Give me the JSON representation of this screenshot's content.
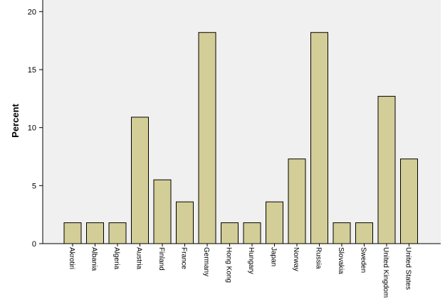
{
  "chart_data": {
    "type": "bar",
    "y_label": "Percent",
    "categories": [
      "Akrotiri",
      "Albania",
      "Algeria",
      "Austria",
      "Finland",
      "France",
      "Germany",
      "Hong Kong",
      "Hungary",
      "Japan",
      "Norway",
      "Russia",
      "Slovakia",
      "Sweden",
      "United Kingdom",
      "United States"
    ],
    "values": [
      1.8,
      1.8,
      1.8,
      10.9,
      5.5,
      3.6,
      18.2,
      1.8,
      1.8,
      3.6,
      7.3,
      18.2,
      1.8,
      1.8,
      12.7,
      7.3
    ],
    "color": "#d3ce97",
    "ylim": [
      0,
      21
    ],
    "yticks": [
      0,
      5,
      10,
      15,
      20
    ],
    "grid": false
  }
}
